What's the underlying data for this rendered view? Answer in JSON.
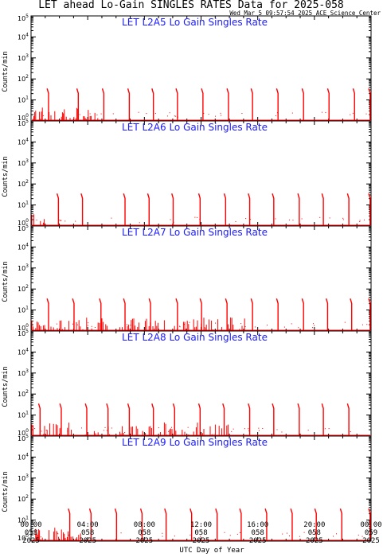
{
  "header": {
    "title": "LET ahead Lo-Gain SINGLES RATES Data for 2025-058",
    "timestamp": "Wed Mar  5 09:57:54 2025 ACE Science Center"
  },
  "chart_data": {
    "type": "line",
    "xlabel": "UTC Day of Year",
    "ylabel": "Counts/min",
    "xlim_hours": [
      0,
      24
    ],
    "ylim": [
      1,
      100000
    ],
    "yscale": "log",
    "yticks": [
      "10",
      "10",
      "10",
      "10",
      "10",
      "10"
    ],
    "ytick_exponents": [
      "0",
      "1",
      "2",
      "3",
      "4",
      "5"
    ],
    "xticks": [
      {
        "time": "00:00",
        "doy": "058",
        "year": "2025"
      },
      {
        "time": "04:00",
        "doy": "058",
        "year": "2025"
      },
      {
        "time": "08:00",
        "doy": "058",
        "year": "2025"
      },
      {
        "time": "12:00",
        "doy": "058",
        "year": "2025"
      },
      {
        "time": "16:00",
        "doy": "058",
        "year": "2025"
      },
      {
        "time": "20:00",
        "doy": "058",
        "year": "2025"
      },
      {
        "time": "00:00",
        "doy": "059",
        "year": "2025"
      }
    ],
    "series_color": "#ff0000",
    "panels": [
      {
        "title": "LET L2A5 Lo Gain Singles Rate",
        "spike_peak": 35,
        "spike_hours": [
          1.2,
          3.3,
          5.1,
          6.9,
          8.6,
          10.3,
          12.1,
          13.9,
          15.6,
          17.4,
          19.2,
          21.0,
          22.8,
          23.9
        ],
        "noise_hours": [
          0,
          4.8
        ]
      },
      {
        "title": "LET L2A6 Lo Gain Singles Rate",
        "spike_peak": 35,
        "spike_hours": [
          1.9,
          3.6,
          6.6,
          8.3,
          10.0,
          11.9,
          13.7,
          15.4,
          17.1,
          18.9,
          20.6,
          22.4,
          23.9
        ],
        "noise_hours": [
          0,
          1.0
        ]
      },
      {
        "title": "LET L2A7 Lo Gain Singles Rate",
        "spike_peak": 35,
        "spike_hours": [
          1.2,
          3.0,
          4.9,
          6.6,
          8.4,
          10.3,
          12.0,
          13.8,
          15.6,
          17.4,
          19.2,
          20.9,
          22.6,
          23.9
        ],
        "noise_hours": [
          0,
          15.2
        ]
      },
      {
        "title": "LET L2A8 Lo Gain Singles Rate",
        "spike_peak": 35,
        "spike_hours": [
          0.6,
          2.1,
          3.9,
          5.4,
          6.9,
          8.6,
          10.1,
          11.9,
          13.6,
          15.4,
          17.1,
          18.9,
          20.6,
          22.4
        ],
        "noise_hours": [
          0,
          14.0
        ]
      },
      {
        "title": "LET L2A9 Lo Gain Singles Rate",
        "spike_peak": 35,
        "spike_hours": [
          2.7,
          4.2,
          6.0,
          7.8,
          9.5,
          11.3,
          13.1,
          14.8,
          16.6,
          18.4,
          20.1,
          21.9,
          23.9
        ],
        "noise_hours": [
          0,
          3.5
        ]
      }
    ]
  }
}
